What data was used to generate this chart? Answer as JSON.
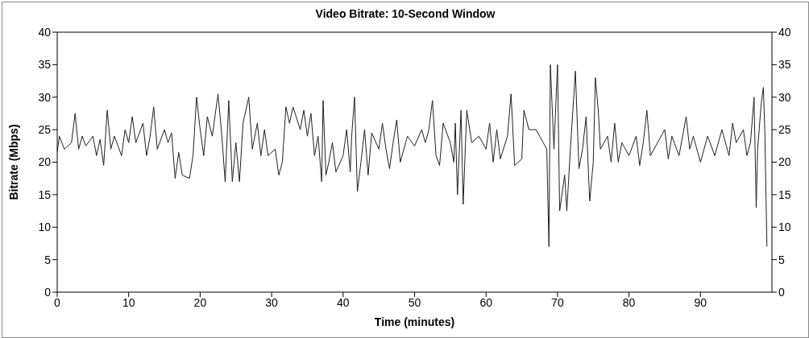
{
  "chart_data": {
    "type": "line",
    "title": "Video Bitrate: 10-Second Window",
    "xlabel": "Time (minutes)",
    "ylabel": "Bitrate (Mbps)",
    "x": [
      0,
      0.3,
      1,
      2,
      2.5,
      3,
      3.5,
      4,
      5,
      5.5,
      6,
      6.5,
      7,
      7.5,
      8,
      9,
      9.5,
      10,
      10.5,
      11,
      12,
      12.5,
      13,
      13.5,
      14,
      15,
      15.5,
      16,
      16.5,
      17,
      17.5,
      18.5,
      19,
      19.5,
      20,
      20.5,
      21,
      21.7,
      22.5,
      23,
      23.5,
      24,
      24.5,
      25,
      25.5,
      26,
      26.8,
      27.3,
      28,
      28.5,
      29,
      29.5,
      30.5,
      31,
      31.5,
      32,
      32.5,
      33,
      34,
      34.5,
      35,
      35.5,
      36,
      36.5,
      37,
      37.2,
      37.6,
      38,
      38.5,
      39,
      40,
      40.5,
      41,
      41.2,
      41.6,
      42,
      42.5,
      43,
      43.5,
      44,
      45,
      45.5,
      46,
      46.5,
      47,
      47.5,
      48,
      49,
      50,
      51,
      51.5,
      52,
      52.5,
      53,
      53.5,
      54,
      55,
      55.5,
      55.7,
      56,
      56.5,
      56.8,
      57.3,
      58,
      59,
      60,
      60.5,
      61,
      61.5,
      62,
      63,
      63.5,
      64,
      64.5,
      65,
      65.3,
      66,
      67,
      68,
      68.5,
      68.8,
      69,
      69.5,
      70,
      70.3,
      71,
      71.3,
      71.8,
      72.5,
      73,
      73.5,
      74,
      74.5,
      75,
      75.3,
      75.7,
      76,
      77,
      77.5,
      78,
      78.5,
      79,
      80,
      81,
      81.5,
      82,
      82.5,
      83,
      84,
      85,
      85.5,
      86,
      87,
      88,
      88.5,
      89,
      90,
      91,
      92,
      93,
      94,
      94.5,
      95,
      96,
      96.5,
      97,
      97.5,
      97.8,
      98,
      98.5,
      98.8,
      99,
      99.3
    ],
    "series": [
      {
        "color": "#202020",
        "values": [
          21.5,
          24,
          22,
          23,
          27.5,
          22,
          24,
          22.5,
          24,
          21,
          23.5,
          19.5,
          28,
          22,
          24,
          21,
          25,
          23,
          27,
          23,
          26,
          21,
          24,
          28.5,
          22,
          25,
          23,
          24.5,
          17.5,
          21.5,
          18,
          17.5,
          21,
          30,
          25,
          21,
          27,
          24,
          30.5,
          24.5,
          17,
          29.5,
          17,
          23,
          17,
          26,
          30,
          22,
          26,
          21,
          25,
          21,
          22,
          18,
          20,
          28.5,
          26,
          28.5,
          25,
          28,
          24,
          27.5,
          21,
          24,
          17,
          29.5,
          18,
          20,
          23,
          18.5,
          21,
          25,
          18.5,
          24,
          30,
          15.5,
          20,
          25,
          18,
          24.5,
          22,
          26,
          22,
          19,
          23,
          26.5,
          20,
          24,
          22.5,
          25,
          23,
          25,
          29.5,
          21,
          19.5,
          26,
          23,
          20,
          26,
          15,
          28,
          13.5,
          28,
          23,
          24,
          22,
          26,
          20,
          25,
          20.5,
          24,
          30.5,
          19.5,
          20,
          20.5,
          28,
          25,
          25,
          23,
          22,
          7,
          35,
          22,
          35,
          12.5,
          18,
          12.5,
          22,
          34,
          19,
          22,
          27,
          14,
          20,
          33,
          28,
          22,
          24,
          20,
          26,
          20,
          23,
          21,
          24,
          19.5,
          23,
          28,
          21,
          23,
          25,
          20.5,
          24,
          21,
          27,
          22,
          24,
          20,
          24,
          21,
          25,
          21,
          26,
          23,
          25,
          21,
          23,
          30,
          13,
          22,
          29,
          31.5,
          25,
          7
        ]
      }
    ],
    "xlim": [
      0,
      100
    ],
    "xticks": [
      0,
      10,
      20,
      30,
      40,
      50,
      60,
      70,
      80,
      90
    ],
    "ylim": [
      0,
      40
    ],
    "yticks": [
      0,
      5,
      10,
      15,
      20,
      25,
      30,
      35,
      40
    ],
    "y2lim": [
      0,
      40
    ],
    "y2ticks": [
      0,
      5,
      10,
      15,
      20,
      25,
      30,
      35,
      40
    ],
    "grid": false,
    "legend": false,
    "marker": "none",
    "line_style": "solid"
  }
}
